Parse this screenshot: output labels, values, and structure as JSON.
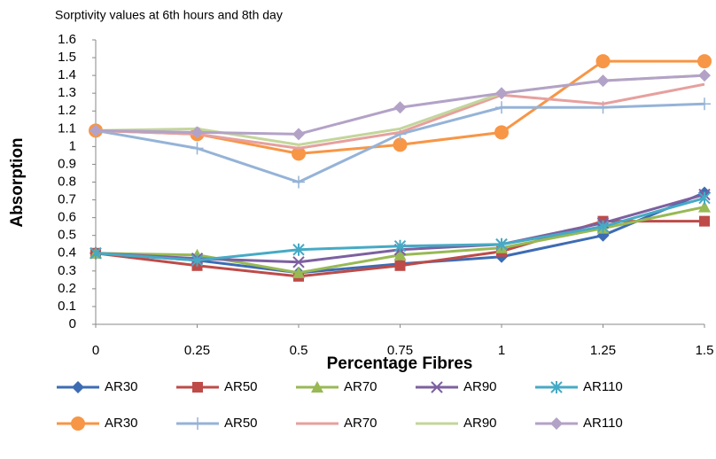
{
  "chart_data": {
    "type": "line",
    "title": "Sorptivity values at 6th hours and 8th day",
    "x_label": "Percentage Fibres",
    "y_label": "Absorption",
    "x": [
      0,
      0.25,
      0.5,
      0.75,
      1,
      1.25,
      1.5
    ],
    "xlim": [
      0,
      1.5
    ],
    "xticks": [
      0,
      0.25,
      0.5,
      0.75,
      1,
      1.25,
      1.5
    ],
    "ylim": [
      0,
      1.6
    ],
    "yticks": [
      0,
      0.1,
      0.2,
      0.3,
      0.4,
      0.5,
      0.6,
      0.7,
      0.8,
      0.9,
      1,
      1.1,
      1.2,
      1.3,
      1.4,
      1.5,
      1.6
    ],
    "grid": false,
    "legend": "bottom",
    "series": [
      {
        "name": "AR30",
        "color": "#3d6cb3",
        "marker": "diamond",
        "values": [
          0.4,
          0.36,
          0.29,
          0.34,
          0.38,
          0.5,
          0.74
        ]
      },
      {
        "name": "AR50",
        "color": "#be4b48",
        "marker": "square",
        "values": [
          0.4,
          0.33,
          0.27,
          0.33,
          0.41,
          0.58,
          0.58
        ]
      },
      {
        "name": "AR70",
        "color": "#98b954",
        "marker": "triangle",
        "values": [
          0.4,
          0.39,
          0.29,
          0.39,
          0.43,
          0.54,
          0.66
        ]
      },
      {
        "name": "AR90",
        "color": "#7d60a0",
        "marker": "x",
        "values": [
          0.4,
          0.37,
          0.35,
          0.42,
          0.45,
          0.57,
          0.73
        ]
      },
      {
        "name": "AR110",
        "color": "#46aac5",
        "marker": "star",
        "values": [
          0.4,
          0.36,
          0.42,
          0.44,
          0.45,
          0.55,
          0.71
        ]
      },
      {
        "name": "AR30",
        "color": "#f79646",
        "marker": "circle",
        "values": [
          1.09,
          1.07,
          0.96,
          1.01,
          1.08,
          1.48,
          1.48
        ]
      },
      {
        "name": "AR50",
        "color": "#95b3d7",
        "marker": "plus",
        "values": [
          1.09,
          0.99,
          0.8,
          1.07,
          1.22,
          1.22,
          1.24
        ]
      },
      {
        "name": "AR70",
        "color": "#e6a09e",
        "marker": "none",
        "values": [
          1.09,
          1.07,
          0.99,
          1.08,
          1.29,
          1.24,
          1.35
        ]
      },
      {
        "name": "AR90",
        "color": "#c3d69b",
        "marker": "none",
        "values": [
          1.09,
          1.1,
          1.01,
          1.1,
          1.3,
          1.37,
          1.4
        ]
      },
      {
        "name": "AR110",
        "color": "#b3a2c7",
        "marker": "diamond",
        "values": [
          1.09,
          1.08,
          1.07,
          1.22,
          1.3,
          1.37,
          1.4
        ]
      }
    ]
  }
}
